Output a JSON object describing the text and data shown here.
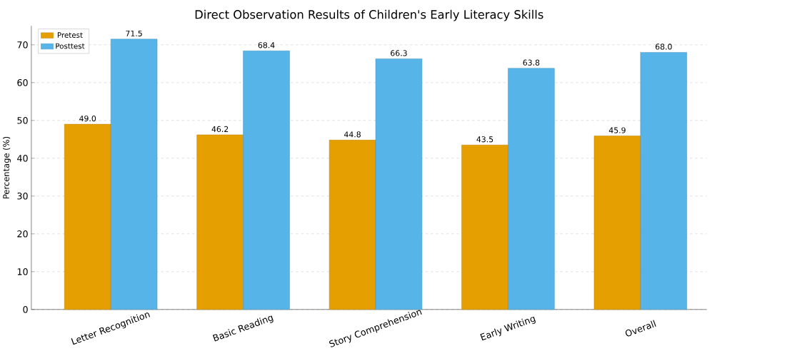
{
  "chart_data": {
    "type": "bar",
    "title": "Direct Observation Results of Children's Early Literacy Skills",
    "ylabel": "Percentage (%)",
    "categories": [
      "Letter Recognition",
      "Basic Reading",
      "Story Comprehension",
      "Early Writing",
      "Overall"
    ],
    "series": [
      {
        "name": "Pretest",
        "color": "#e69f00",
        "values": [
          49.0,
          46.2,
          44.8,
          43.5,
          45.9
        ],
        "value_labels": [
          "49.0",
          "46.2",
          "44.8",
          "43.5",
          "45.9"
        ]
      },
      {
        "name": "Posttest",
        "color": "#56b4e9",
        "values": [
          71.5,
          68.4,
          66.3,
          63.8,
          68.0
        ],
        "value_labels": [
          "71.5",
          "68.4",
          "66.3",
          "63.8",
          "68.0"
        ]
      }
    ],
    "ylim": [
      0,
      75
    ],
    "yticks": [
      0,
      10,
      20,
      30,
      40,
      50,
      60,
      70
    ],
    "grid": "y",
    "legend": "top left"
  }
}
